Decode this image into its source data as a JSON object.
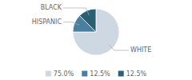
{
  "chart_data": {
    "type": "pie",
    "categories": [
      "WHITE",
      "HISPANIC",
      "BLACK"
    ],
    "values": [
      75.0,
      12.5,
      12.5
    ],
    "value_labels": [
      "75.0%",
      "12.5%",
      "12.5%"
    ],
    "colors": [
      "#cdd8e3",
      "#4a7fa0",
      "#2b5f74"
    ],
    "legend": "bottom"
  }
}
